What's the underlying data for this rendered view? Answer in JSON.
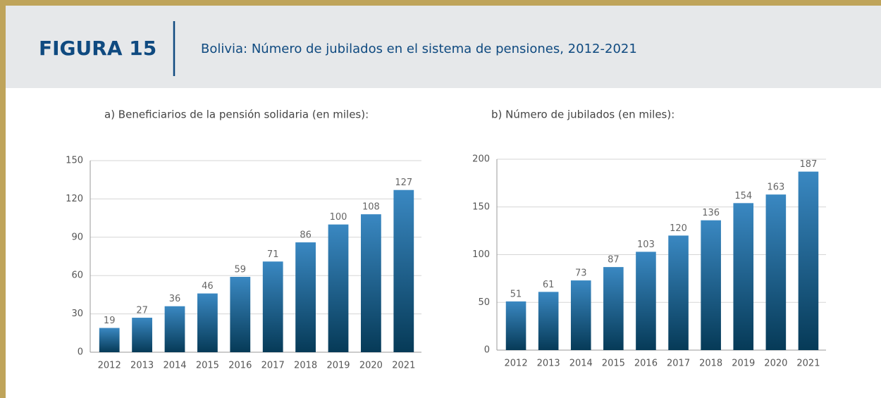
{
  "header": {
    "label": "FIGURA 15",
    "title": "Bolivia: Número de jubilados en el sistema de pensiones, 2012-2021"
  },
  "chart_data": [
    {
      "type": "bar",
      "title": "a) Beneficiarios de la pensión solidaria (en miles):",
      "categories": [
        "2012",
        "2013",
        "2014",
        "2015",
        "2016",
        "2017",
        "2018",
        "2019",
        "2020",
        "2021"
      ],
      "values": [
        19,
        27,
        36,
        46,
        59,
        71,
        86,
        100,
        108,
        127
      ],
      "ylim": [
        0,
        150
      ],
      "yticks": [
        0,
        30,
        60,
        90,
        120,
        150
      ],
      "grid": true,
      "color": [
        "#3a88c2",
        "#063a57"
      ]
    },
    {
      "type": "bar",
      "title": "b) Número de jubilados (en miles):",
      "categories": [
        "2012",
        "2013",
        "2014",
        "2015",
        "2016",
        "2017",
        "2018",
        "2019",
        "2020",
        "2021"
      ],
      "values": [
        51,
        61,
        73,
        87,
        103,
        120,
        136,
        154,
        163,
        187
      ],
      "ylim": [
        0,
        200
      ],
      "yticks": [
        0,
        50,
        100,
        150,
        200
      ],
      "grid": true,
      "color": [
        "#3a88c2",
        "#063a57"
      ]
    }
  ]
}
